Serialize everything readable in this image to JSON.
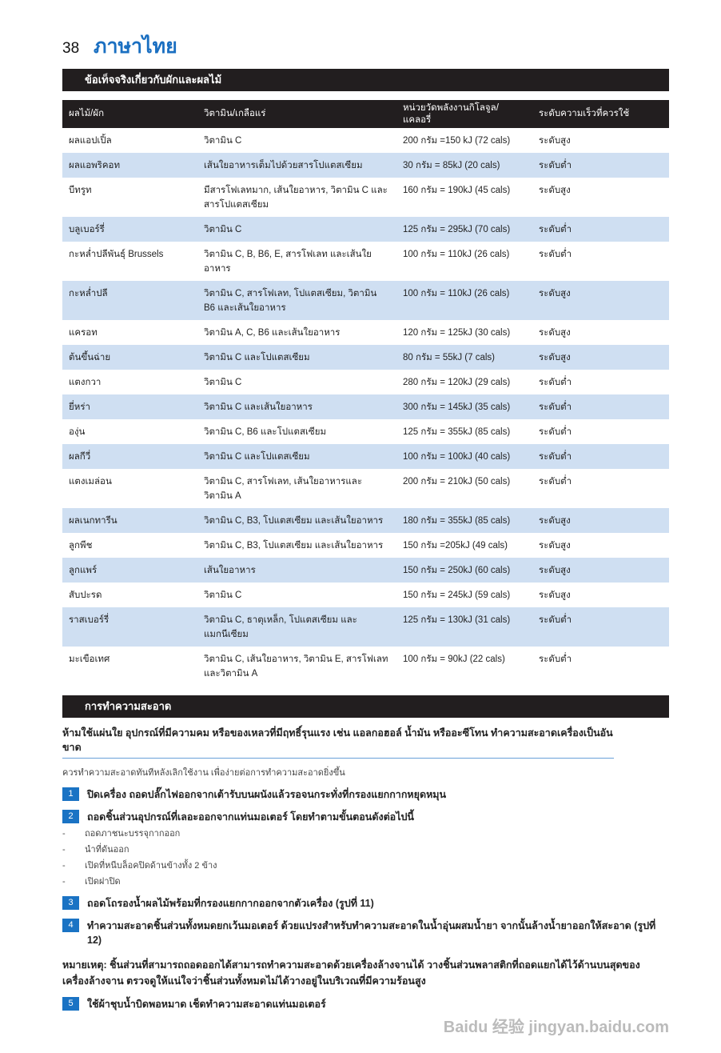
{
  "page": {
    "number": "38",
    "title": "ภาษาไทย"
  },
  "facts": {
    "heading": "ข้อเท็จจริงเกี่ยวกับผักและผลไม้",
    "columns": [
      "ผลไม้/ผัก",
      "วิตามิน/เกลือแร่",
      "หน่วยวัดพลังงานกิโลจูล/แคลอรี่",
      "ระดับความเร็วที่ควรใช้"
    ],
    "rows": [
      [
        "ผลแอปเปิ้ล",
        "วิตามิน C",
        "200 กรัม =150 kJ (72 cals)",
        "ระดับสูง"
      ],
      [
        "ผลแอพริคอท",
        "เส้นใยอาหารเต็มไปด้วยสารโปแตสเซียม",
        "30 กรัม = 85kJ (20 cals)",
        "ระดับต่ำ"
      ],
      [
        "บีทรูท",
        "มีสารโฟเลทมาก, เส้นใยอาหาร, วิตามิน C และสารโปแตสเซียม",
        "160 กรัม = 190kJ (45 cals)",
        "ระดับสูง"
      ],
      [
        "บลูเบอร์รี่",
        "วิตามิน C",
        "125 กรัม = 295kJ (70 cals)",
        "ระดับต่ำ"
      ],
      [
        "กะหล่ำปลีพันธุ์ Brussels",
        "วิตามิน C, B, B6, E, สารโฟเลท และเส้นใยอาหาร",
        "100 กรัม = 110kJ (26 cals)",
        "ระดับต่ำ"
      ],
      [
        "กะหล่ำปลี",
        "วิตามิน C, สารโฟเลท, โปแตสเซียม, วิตามิน B6 และเส้นใยอาหาร",
        "100 กรัม = 110kJ (26 cals)",
        "ระดับสูง"
      ],
      [
        "แครอท",
        "วิตามิน A, C, B6 และเส้นใยอาหาร",
        "120 กรัม = 125kJ (30 cals)",
        "ระดับสูง"
      ],
      [
        "ต้นขึ้นฉ่าย",
        "วิตามิน C และโปแตสเซียม",
        "80 กรัม = 55kJ (7 cals)",
        "ระดับสูง"
      ],
      [
        "แตงกวา",
        "วิตามิน C",
        "280 กรัม = 120kJ (29 cals)",
        "ระดับต่ำ"
      ],
      [
        "ยี่หร่า",
        "วิตามิน C และเส้นใยอาหาร",
        "300 กรัม = 145kJ (35 cals)",
        "ระดับต่ำ"
      ],
      [
        "องุ่น",
        "วิตามิน C, B6 และโปแตสเซียม",
        "125 กรัม = 355kJ (85 cals)",
        "ระดับต่ำ"
      ],
      [
        "ผลกีวี่",
        "วิตามิน C และโปแตสเซียม",
        "100 กรัม = 100kJ (40 cals)",
        "ระดับต่ำ"
      ],
      [
        "แตงเมล่อน",
        "วิตามิน C, สารโฟเลท, เส้นใยอาหารและวิตามิน A",
        "200 กรัม = 210kJ (50 cals)",
        "ระดับต่ำ"
      ],
      [
        "ผลเนกทารีน",
        "วิตามิน C, B3, โปแตสเซียม และเส้นใยอาหาร",
        "180 กรัม = 355kJ (85 cals)",
        "ระดับสูง"
      ],
      [
        "ลูกพีช",
        "วิตามิน C, B3, โปแตสเซียม และเส้นใยอาหาร",
        "150 กรัม =205kJ (49 cals)",
        "ระดับสูง"
      ],
      [
        "ลูกแพร์",
        "เส้นใยอาหาร",
        "150 กรัม = 250kJ (60 cals)",
        "ระดับสูง"
      ],
      [
        "สับปะรด",
        "วิตามิน C",
        "150 กรัม = 245kJ (59 cals)",
        "ระดับสูง"
      ],
      [
        "ราสเบอร์รี่",
        "วิตามิน C, ธาตุเหล็ก, โปแตสเซียม และแมกนีเซียม",
        "125 กรัม = 130kJ (31 cals)",
        "ระดับต่ำ"
      ],
      [
        "มะเขือเทศ",
        "วิตามิน C, เส้นใยอาหาร, วิตามิน E, สารโฟเลท และวิตามิน A",
        "100 กรัม = 90kJ (22 cals)",
        "ระดับต่ำ"
      ]
    ]
  },
  "cleaning": {
    "heading": "การทำความสะอาด",
    "warning": "ห้ามใช้แผ่นใย อุปกรณ์ที่มีความคม หรือของเหลวที่มีฤทธิ์รุนแรง เช่น แอลกอฮอล์ น้ำมัน หรืออะซีโทน ทำความสะอาดเครื่องเป็นอันขาด",
    "intro": "ควรทำความสะอาดทันทีหลังเลิกใช้งาน เพื่อง่ายต่อการทำความสะอาดยิ่งขึ้น",
    "steps": [
      {
        "n": "1",
        "text": "ปิดเครื่อง ถอดปลั๊กไฟออกจากเต้ารับบนผนังแล้วรอจนกระทั่งที่กรองแยกกากหยุดหมุน"
      },
      {
        "n": "2",
        "text": "ถอดชิ้นส่วนอุปกรณ์ที่เลอะออกจากแท่นมอเตอร์ โดยทำตามขั้นตอนดังต่อไปนี้"
      },
      {
        "n": "3",
        "text": "ถอดโถรองน้ำผลไม้พร้อมที่กรองแยกกากออกจากตัวเครื่อง (รูปที่ 11)"
      },
      {
        "n": "4",
        "text": "ทำความสะอาดชิ้นส่วนทั้งหมดยกเว้นมอเตอร์ ด้วยแปรงสำหรับทำความสะอาดในน้ำอุ่นผสมน้ำยา จากนั้นล้างน้ำยาออกให้สะอาด (รูปที่ 12)"
      },
      {
        "n": "5",
        "text": "ใช้ผ้าชุบน้ำบิดพอหมาด เช็ดทำความสะอาดแท่นมอเตอร์"
      }
    ],
    "substeps": [
      "ถอดภาชนะบรรจุกากออก",
      "นำที่ดันออก",
      "เปิดที่หนีบล็อคปิดด้านข้างทั้ง 2 ข้าง",
      "เปิดฝาปิด"
    ],
    "note": "หมายเหตุ: ชิ้นส่วนที่สามารถถอดออกได้สามารถทำความสะอาดด้วยเครื่องล้างจานได้ วางชิ้นส่วนพลาสติกที่ถอดแยกได้ไว้ด้านบนสุดของเครื่องล้างจาน ตรวจดูให้แน่ใจว่าชิ้นส่วนทั้งหมดไม่ได้วางอยู่ในบริเวณที่มีความร้อนสูง"
  },
  "watermark": "Baidu 经验 jingyan.baidu.com",
  "colors": {
    "accent": "#1a6fc1",
    "bar": "#221e1f",
    "stripe": "#cfdff2"
  }
}
